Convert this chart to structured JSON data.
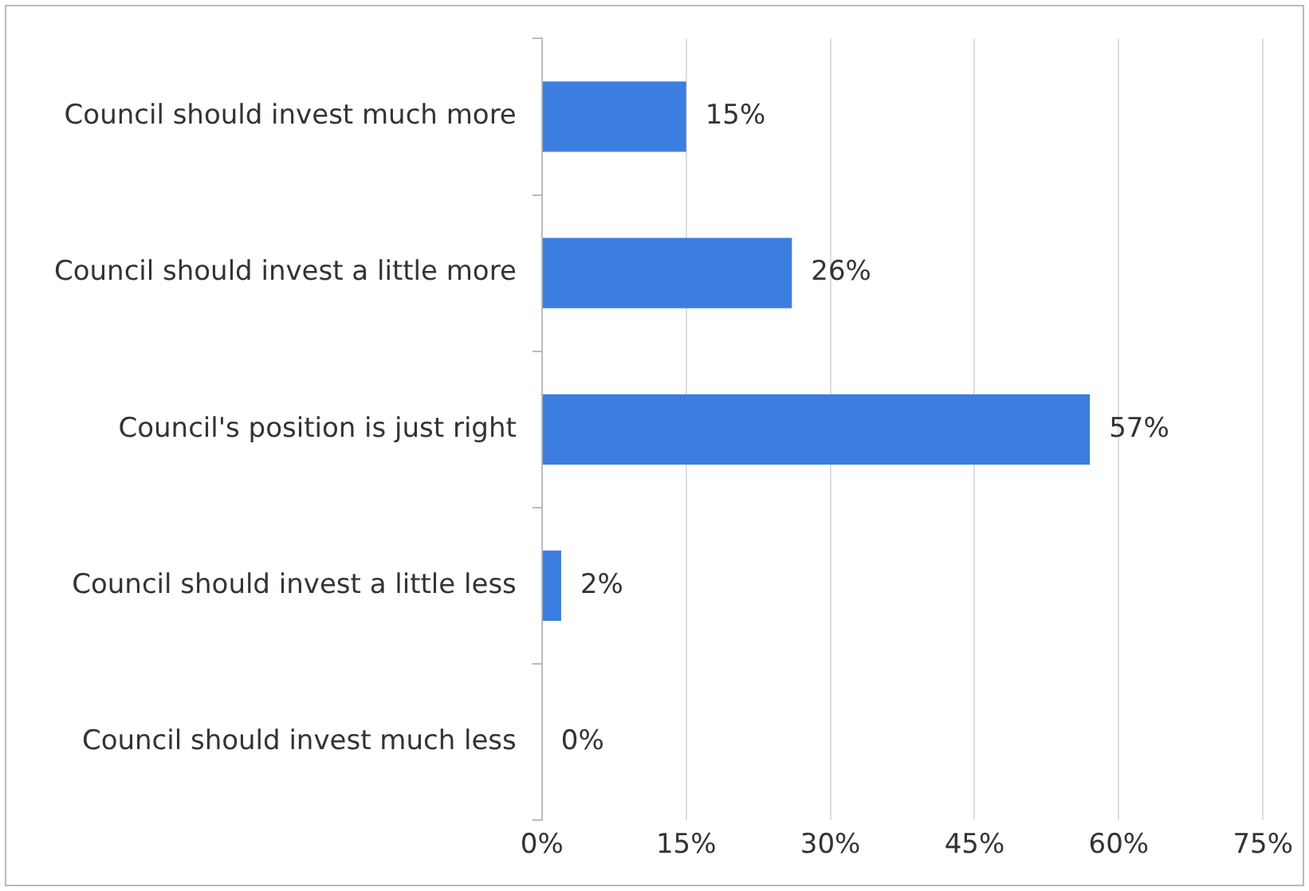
{
  "chart_data": {
    "type": "bar",
    "orientation": "horizontal",
    "categories": [
      "Council should invest much more",
      "Council should invest a little more",
      "Council's position is just right",
      "Council should invest a little less",
      "Council should invest much less"
    ],
    "values": [
      15,
      26,
      57,
      2,
      0
    ],
    "value_labels": [
      "15%",
      "26%",
      "57%",
      "2%",
      "0%"
    ],
    "color": "#3c7de0",
    "xlim": [
      0,
      75
    ],
    "xticks": [
      {
        "value": 0,
        "label": "0%"
      },
      {
        "value": 15,
        "label": "15%"
      },
      {
        "value": 30,
        "label": "30%"
      },
      {
        "value": 45,
        "label": "45%"
      },
      {
        "value": 60,
        "label": "60%"
      },
      {
        "value": 75,
        "label": "75%"
      }
    ],
    "grid": "x",
    "legend": false
  }
}
